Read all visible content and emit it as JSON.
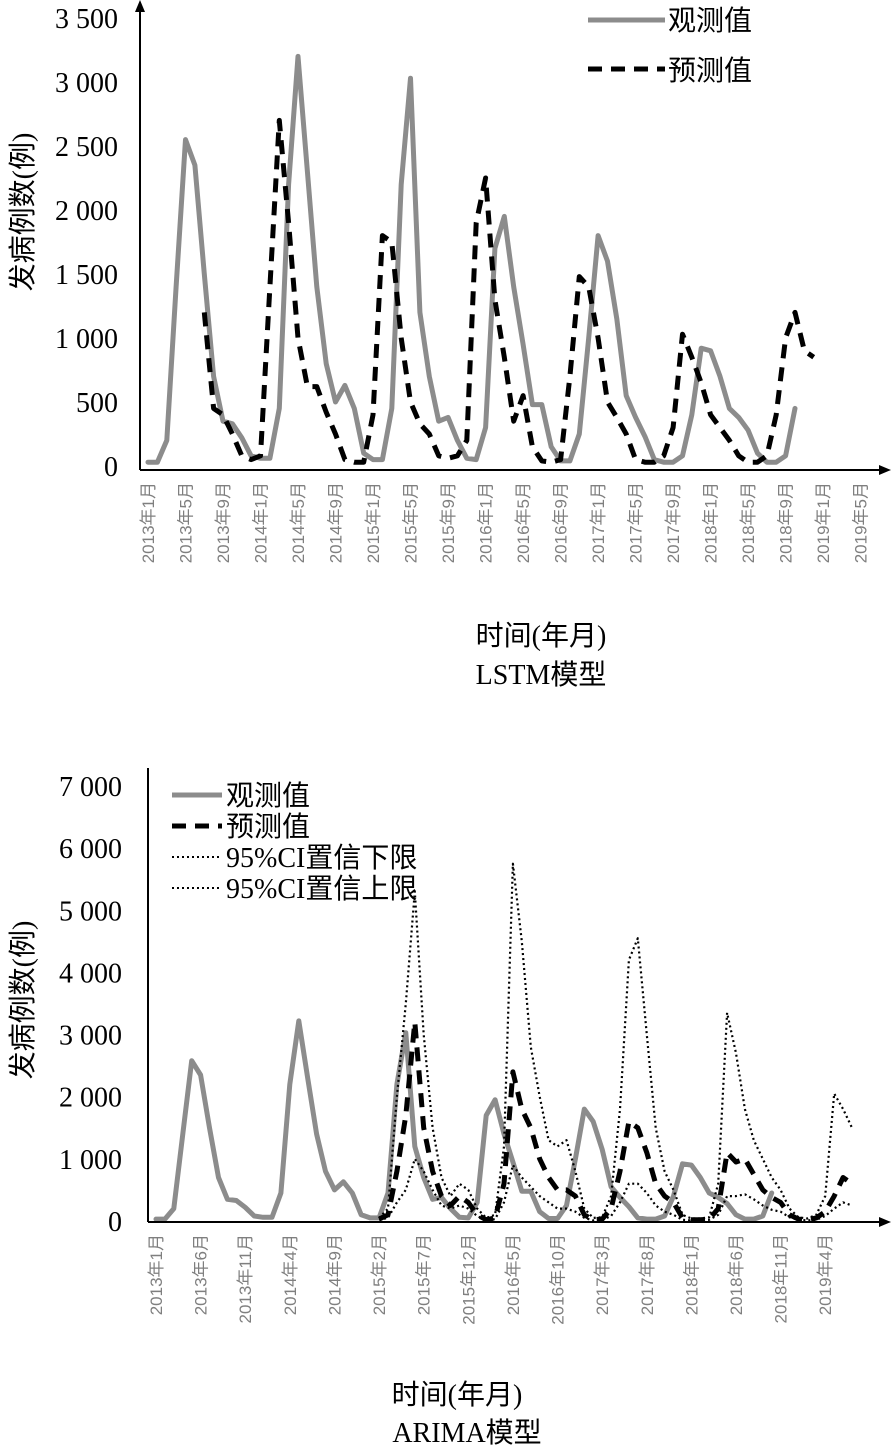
{
  "chart_data": [
    {
      "type": "line",
      "xlabel": "时间(年月)",
      "title": "LSTM模型",
      "ylabel": "发病例数(例)",
      "ylim": [
        0,
        3500
      ],
      "yticks": [
        0,
        500,
        1000,
        1500,
        2000,
        2500,
        3000,
        3500
      ],
      "yticklabels": [
        "0",
        "500",
        "1 000",
        "1 500",
        "2 000",
        "2 500",
        "3 000",
        "3 500"
      ],
      "x_start": "2013-01",
      "n_months": 78,
      "tick_labels": [
        "2013年1月",
        "2013年5月",
        "2013年9月",
        "2014年1月",
        "2014年5月",
        "2014年9月",
        "2015年1月",
        "2015年5月",
        "2015年9月",
        "2016年1月",
        "2016年5月",
        "2016年9月",
        "2017年1月",
        "2017年5月",
        "2017年9月",
        "2018年1月",
        "2018年5月",
        "2018年9月",
        "2019年1月",
        "2019年5月"
      ],
      "tick_step": 4,
      "legend": "top-right",
      "series": [
        {
          "name": "观测值",
          "style": "solid",
          "color": "#8c8c8c",
          "start": 0,
          "values": [
            30,
            30,
            200,
            1400,
            2550,
            2350,
            1500,
            700,
            350,
            330,
            220,
            80,
            60,
            60,
            450,
            2200,
            3200,
            2300,
            1400,
            800,
            500,
            630,
            450,
            100,
            50,
            50,
            450,
            2200,
            3030,
            1200,
            700,
            350,
            380,
            200,
            60,
            50,
            300,
            1700,
            1950,
            1400,
            950,
            480,
            480,
            150,
            40,
            40,
            250,
            1000,
            1800,
            1600,
            1150,
            550,
            380,
            230,
            50,
            30,
            30,
            80,
            400,
            920,
            900,
            700,
            450,
            380,
            280,
            100,
            30,
            30,
            80,
            450
          ]
        },
        {
          "name": "预测值",
          "style": "dashed",
          "color": "#000000",
          "start": 6,
          "values": [
            1200,
            450,
            400,
            250,
            80,
            50,
            80,
            1400,
            2700,
            1900,
            1000,
            620,
            620,
            420,
            250,
            50,
            30,
            30,
            400,
            1800,
            1750,
            1000,
            500,
            330,
            250,
            80,
            60,
            80,
            200,
            1900,
            2250,
            1300,
            850,
            350,
            550,
            150,
            40,
            30,
            50,
            700,
            1480,
            1400,
            1000,
            500,
            380,
            250,
            50,
            30,
            30,
            80,
            300,
            1030,
            850,
            650,
            400,
            300,
            200,
            80,
            30,
            30,
            80,
            400,
            1000,
            1200,
            900,
            850
          ]
        }
      ]
    },
    {
      "type": "line",
      "xlabel": "时间(年月)",
      "title": "ARIMA模型",
      "ylabel": "发病例数(例)",
      "ylim": [
        0,
        7000
      ],
      "yticks": [
        0,
        1000,
        2000,
        3000,
        4000,
        5000,
        6000,
        7000
      ],
      "yticklabels": [
        "0",
        "1 000",
        "2 000",
        "3 000",
        "4 000",
        "5 000",
        "6 000",
        "7 000"
      ],
      "x_start": "2013-01",
      "n_months": 79,
      "tick_labels": [
        "2013年1月",
        "2013年6月",
        "2013年11月",
        "2014年4月",
        "2014年9月",
        "2015年2月",
        "2015年7月",
        "2015年12月",
        "2016年5月",
        "2016年10月",
        "2017年3月",
        "2017年8月",
        "2018年1月",
        "2018年6月",
        "2018年11月",
        "2019年4月"
      ],
      "tick_step": 5,
      "legend": "top-left",
      "series": [
        {
          "name": "观测值",
          "style": "solid",
          "color": "#8c8c8c",
          "start": 0,
          "values": [
            30,
            30,
            200,
            1400,
            2580,
            2350,
            1500,
            700,
            350,
            330,
            220,
            80,
            60,
            60,
            450,
            2200,
            3220,
            2300,
            1400,
            800,
            500,
            630,
            450,
            100,
            50,
            50,
            450,
            2200,
            3030,
            1200,
            700,
            350,
            380,
            200,
            60,
            50,
            300,
            1700,
            1950,
            1400,
            950,
            480,
            480,
            150,
            40,
            40,
            250,
            1000,
            1800,
            1600,
            1150,
            550,
            380,
            230,
            50,
            30,
            30,
            80,
            400,
            920,
            900,
            700,
            450,
            380,
            280,
            100,
            30,
            30,
            80,
            450
          ]
        },
        {
          "name": "预测值",
          "style": "dashed",
          "color": "#000000",
          "start": 25,
          "values": [
            30,
            100,
            800,
            1700,
            3200,
            1500,
            800,
            400,
            250,
            400,
            300,
            100,
            20,
            50,
            600,
            2400,
            1800,
            1500,
            1000,
            700,
            500,
            500,
            400,
            100,
            20,
            30,
            200,
            800,
            1600,
            1500,
            1100,
            600,
            400,
            300,
            50,
            20,
            20,
            30,
            200,
            1100,
            950,
            1000,
            750,
            500,
            380,
            300,
            100,
            30,
            20,
            50,
            150,
            400,
            700,
            600
          ]
        },
        {
          "name": "95%CI置信下限",
          "style": "dotted",
          "color": "#000000",
          "start": 25,
          "values": [
            20,
            50,
            300,
            500,
            1000,
            800,
            500,
            250,
            200,
            250,
            200,
            80,
            10,
            30,
            300,
            900,
            700,
            550,
            400,
            300,
            200,
            200,
            150,
            50,
            10,
            20,
            80,
            300,
            600,
            600,
            450,
            250,
            150,
            100,
            20,
            10,
            10,
            20,
            100,
            400,
            400,
            430,
            350,
            250,
            180,
            150,
            60,
            20,
            10,
            20,
            80,
            200,
            300,
            250
          ]
        },
        {
          "name": "95%CI置信上限",
          "style": "dotted",
          "color": "#000000",
          "start": 25,
          "values": [
            50,
            200,
            2000,
            3500,
            5300,
            3000,
            1500,
            700,
            400,
            600,
            500,
            200,
            50,
            100,
            1200,
            5750,
            4500,
            2800,
            2000,
            1300,
            1200,
            1300,
            800,
            200,
            50,
            60,
            400,
            1800,
            4200,
            4550,
            3000,
            1500,
            800,
            500,
            100,
            40,
            40,
            60,
            600,
            3350,
            2700,
            1800,
            1300,
            1000,
            700,
            500,
            200,
            60,
            40,
            100,
            400,
            2050,
            1800,
            1500
          ]
        }
      ]
    }
  ]
}
